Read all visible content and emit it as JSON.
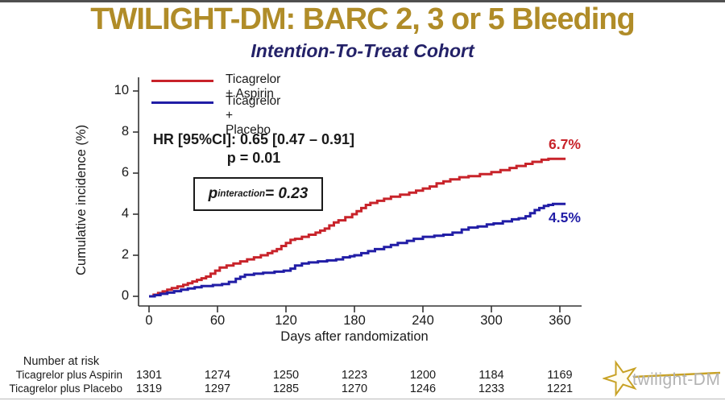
{
  "header": {
    "title": "TWILIGHT-DM: BARC 2, 3 or 5 Bleeding",
    "subtitle": "Intention-To-Treat Cohort"
  },
  "annotations": {
    "hr_line1": "HR [95%CI]: 0.65 [0.47 – 0.91]",
    "hr_line2": "p = 0.01",
    "p_interaction": {
      "p": "p",
      "sub": "interaction",
      "rest": " = 0.23"
    }
  },
  "legend": {
    "items": [
      {
        "label": "Ticagrelor + Aspirin",
        "color": "#C8232A"
      },
      {
        "label": "Ticagrelor + Placebo",
        "color": "#211DA6"
      }
    ]
  },
  "chart_data": {
    "type": "line",
    "subtype": "kaplan-meier-step",
    "title": "TWILIGHT-DM: BARC 2, 3 or 5 Bleeding — Intention-To-Treat Cohort",
    "xlabel": "Days after randomization",
    "ylabel": "Cumulative incidence (%)",
    "xlim": [
      0,
      372
    ],
    "ylim": [
      0,
      10
    ],
    "xticks": [
      0,
      60,
      120,
      180,
      240,
      300,
      360
    ],
    "yticks": [
      0,
      2,
      4,
      6,
      8,
      10
    ],
    "grid": false,
    "legend_position": "top-left",
    "series": [
      {
        "name": "Ticagrelor + Aspirin",
        "color": "#C8232A",
        "end_label": "6.7%",
        "points": [
          [
            0,
            0
          ],
          [
            4,
            0.08
          ],
          [
            8,
            0.16
          ],
          [
            12,
            0.24
          ],
          [
            16,
            0.32
          ],
          [
            20,
            0.4
          ],
          [
            25,
            0.48
          ],
          [
            30,
            0.56
          ],
          [
            34,
            0.64
          ],
          [
            38,
            0.72
          ],
          [
            42,
            0.8
          ],
          [
            46,
            0.88
          ],
          [
            50,
            0.96
          ],
          [
            54,
            1.1
          ],
          [
            58,
            1.25
          ],
          [
            62,
            1.4
          ],
          [
            68,
            1.5
          ],
          [
            74,
            1.6
          ],
          [
            80,
            1.7
          ],
          [
            86,
            1.8
          ],
          [
            92,
            1.9
          ],
          [
            98,
            2.0
          ],
          [
            104,
            2.1
          ],
          [
            108,
            2.2
          ],
          [
            112,
            2.3
          ],
          [
            116,
            2.45
          ],
          [
            120,
            2.6
          ],
          [
            124,
            2.75
          ],
          [
            128,
            2.8
          ],
          [
            134,
            2.9
          ],
          [
            140,
            3.0
          ],
          [
            146,
            3.1
          ],
          [
            150,
            3.2
          ],
          [
            154,
            3.3
          ],
          [
            158,
            3.45
          ],
          [
            162,
            3.6
          ],
          [
            166,
            3.7
          ],
          [
            172,
            3.85
          ],
          [
            178,
            4.0
          ],
          [
            182,
            4.15
          ],
          [
            186,
            4.3
          ],
          [
            190,
            4.45
          ],
          [
            194,
            4.55
          ],
          [
            200,
            4.65
          ],
          [
            206,
            4.75
          ],
          [
            212,
            4.85
          ],
          [
            220,
            4.95
          ],
          [
            228,
            5.05
          ],
          [
            234,
            5.15
          ],
          [
            240,
            5.25
          ],
          [
            246,
            5.35
          ],
          [
            252,
            5.5
          ],
          [
            258,
            5.6
          ],
          [
            264,
            5.7
          ],
          [
            272,
            5.8
          ],
          [
            280,
            5.85
          ],
          [
            290,
            5.95
          ],
          [
            300,
            6.05
          ],
          [
            308,
            6.15
          ],
          [
            316,
            6.25
          ],
          [
            322,
            6.35
          ],
          [
            330,
            6.45
          ],
          [
            336,
            6.55
          ],
          [
            344,
            6.65
          ],
          [
            350,
            6.7
          ],
          [
            365,
            6.7
          ]
        ]
      },
      {
        "name": "Ticagrelor + Placebo",
        "color": "#211DA6",
        "end_label": "4.5%",
        "points": [
          [
            0,
            0
          ],
          [
            5,
            0.06
          ],
          [
            10,
            0.12
          ],
          [
            16,
            0.18
          ],
          [
            22,
            0.25
          ],
          [
            28,
            0.32
          ],
          [
            34,
            0.38
          ],
          [
            40,
            0.44
          ],
          [
            46,
            0.5
          ],
          [
            56,
            0.55
          ],
          [
            64,
            0.6
          ],
          [
            70,
            0.7
          ],
          [
            76,
            0.85
          ],
          [
            80,
            0.95
          ],
          [
            84,
            1.05
          ],
          [
            92,
            1.1
          ],
          [
            100,
            1.15
          ],
          [
            110,
            1.2
          ],
          [
            118,
            1.25
          ],
          [
            124,
            1.35
          ],
          [
            128,
            1.5
          ],
          [
            134,
            1.6
          ],
          [
            140,
            1.65
          ],
          [
            148,
            1.7
          ],
          [
            156,
            1.75
          ],
          [
            164,
            1.8
          ],
          [
            170,
            1.9
          ],
          [
            176,
            1.95
          ],
          [
            180,
            2.0
          ],
          [
            186,
            2.1
          ],
          [
            192,
            2.2
          ],
          [
            198,
            2.3
          ],
          [
            206,
            2.4
          ],
          [
            212,
            2.5
          ],
          [
            218,
            2.6
          ],
          [
            226,
            2.7
          ],
          [
            232,
            2.8
          ],
          [
            240,
            2.9
          ],
          [
            250,
            2.95
          ],
          [
            258,
            3.0
          ],
          [
            266,
            3.1
          ],
          [
            274,
            3.25
          ],
          [
            280,
            3.35
          ],
          [
            288,
            3.4
          ],
          [
            296,
            3.5
          ],
          [
            302,
            3.55
          ],
          [
            310,
            3.65
          ],
          [
            318,
            3.75
          ],
          [
            324,
            3.8
          ],
          [
            330,
            3.9
          ],
          [
            334,
            4.05
          ],
          [
            338,
            4.2
          ],
          [
            342,
            4.3
          ],
          [
            346,
            4.4
          ],
          [
            350,
            4.45
          ],
          [
            354,
            4.5
          ],
          [
            365,
            4.5
          ]
        ]
      }
    ]
  },
  "risk_table": {
    "header": "Number at risk",
    "days": [
      0,
      60,
      120,
      180,
      240,
      300,
      360
    ],
    "rows": [
      {
        "label": "Ticagrelor plus Aspirin",
        "values": [
          "1301",
          "1274",
          "1250",
          "1223",
          "1200",
          "1184",
          "1169"
        ]
      },
      {
        "label": "Ticagrelor plus Placebo",
        "values": [
          "1319",
          "1297",
          "1285",
          "1270",
          "1246",
          "1233",
          "1221"
        ]
      }
    ]
  },
  "logo": {
    "text": "twilight-DM",
    "star_color": "#C8A225"
  },
  "colors": {
    "title_gold": "#B08C28",
    "subtitle_navy": "#232168",
    "axis": "#333333",
    "text": "#1a1a1a"
  }
}
